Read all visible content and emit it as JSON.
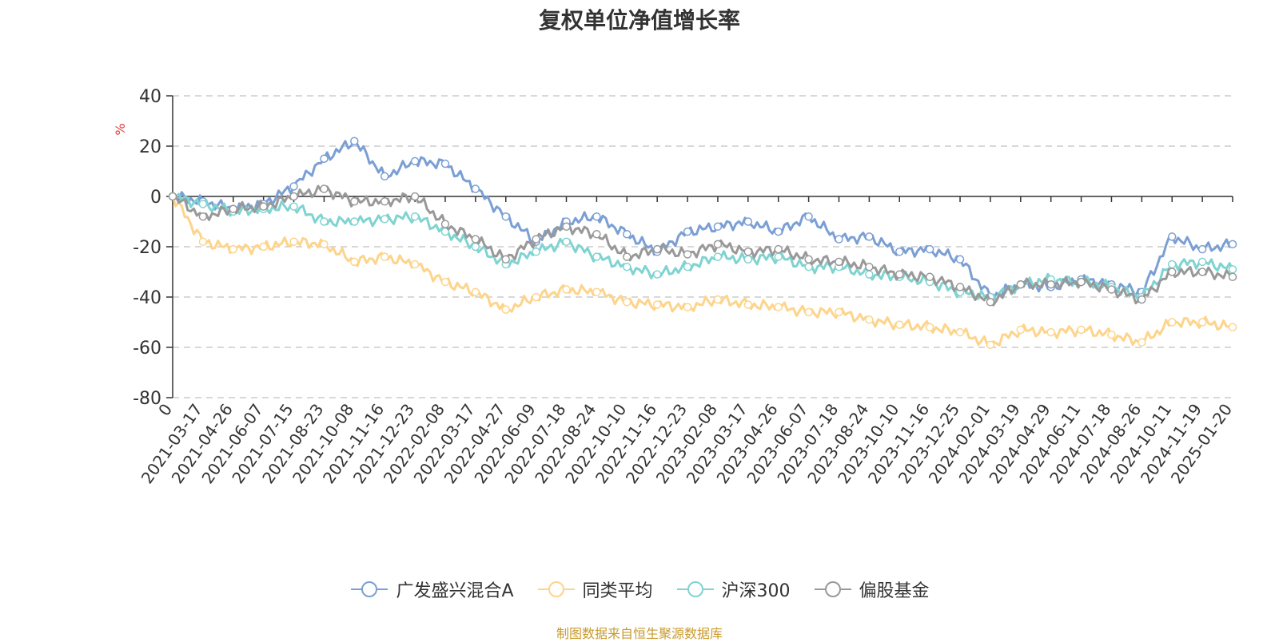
{
  "chart_data": {
    "type": "line",
    "title": "复权单位净值增长率",
    "ylabel": "%",
    "xlabel": "",
    "ylim": [
      -80,
      40
    ],
    "yticks": [
      40,
      20,
      0,
      -20,
      -40,
      -60,
      -80
    ],
    "grid": true,
    "legend_position": "bottom-center",
    "categories": [
      "0",
      "2021-03-17",
      "2021-04-26",
      "2021-06-07",
      "2021-07-15",
      "2021-08-23",
      "2021-10-08",
      "2021-11-16",
      "2021-12-23",
      "2022-02-08",
      "2022-03-17",
      "2022-04-27",
      "2022-06-09",
      "2022-07-18",
      "2022-08-24",
      "2022-10-10",
      "2022-11-16",
      "2022-12-23",
      "2023-02-08",
      "2023-03-17",
      "2023-04-26",
      "2023-06-07",
      "2023-07-18",
      "2023-08-24",
      "2023-10-10",
      "2023-11-16",
      "2023-12-25",
      "2024-02-01",
      "2024-03-19",
      "2024-04-29",
      "2024-06-11",
      "2024-07-18",
      "2024-08-26",
      "2024-10-11",
      "2024-11-19",
      "2025-01-20"
    ],
    "series": [
      {
        "name": "广发盛兴混合A",
        "color": "#7b9fd4",
        "values": [
          0,
          -2,
          -5,
          -3,
          4,
          15,
          22,
          8,
          14,
          13,
          3,
          -8,
          -18,
          -10,
          -8,
          -15,
          -22,
          -14,
          -12,
          -10,
          -14,
          -8,
          -17,
          -16,
          -22,
          -21,
          -25,
          -40,
          -35,
          -36,
          -33,
          -35,
          -38,
          -16,
          -21,
          -19
        ]
      },
      {
        "name": "同类平均",
        "color": "#fdd48a",
        "values": [
          0,
          -18,
          -21,
          -20,
          -18,
          -19,
          -26,
          -24,
          -27,
          -34,
          -38,
          -45,
          -40,
          -37,
          -38,
          -42,
          -43,
          -44,
          -41,
          -43,
          -44,
          -46,
          -46,
          -49,
          -51,
          -52,
          -54,
          -59,
          -53,
          -54,
          -53,
          -55,
          -58,
          -50,
          -50,
          -52
        ]
      },
      {
        "name": "沪深300",
        "color": "#7fd3d1",
        "values": [
          0,
          -3,
          -6,
          -5,
          -4,
          -10,
          -10,
          -9,
          -8,
          -14,
          -20,
          -27,
          -22,
          -18,
          -24,
          -28,
          -31,
          -28,
          -24,
          -25,
          -24,
          -28,
          -28,
          -31,
          -32,
          -34,
          -38,
          -40,
          -35,
          -33,
          -34,
          -36,
          -40,
          -27,
          -26,
          -29
        ]
      },
      {
        "name": "偏股基金",
        "color": "#999999",
        "values": [
          0,
          -8,
          -5,
          -4,
          0,
          3,
          -2,
          -2,
          0,
          -11,
          -17,
          -25,
          -17,
          -12,
          -15,
          -24,
          -21,
          -23,
          -19,
          -22,
          -21,
          -25,
          -26,
          -28,
          -31,
          -32,
          -36,
          -42,
          -35,
          -35,
          -34,
          -37,
          -41,
          -30,
          -30,
          -32
        ]
      }
    ]
  },
  "source_note": "制图数据来自恒生聚源数据库"
}
